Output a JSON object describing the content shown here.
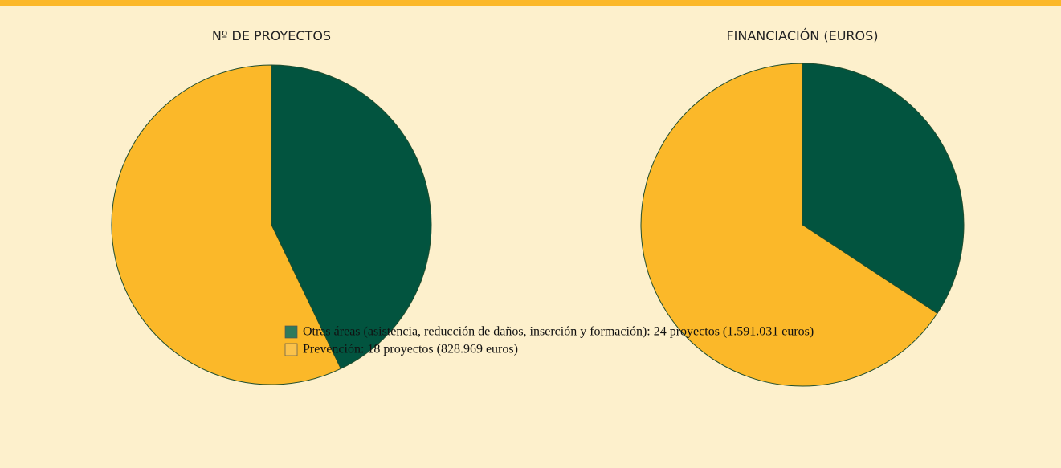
{
  "chart_data": [
    {
      "type": "pie",
      "title": "Nº DE PROYECTOS",
      "values": [
        18,
        24
      ],
      "colors": [
        "#02543f",
        "#fbb829"
      ]
    },
    {
      "type": "pie",
      "title": "FINANCIACIÓN (EUROS)",
      "values": [
        828969,
        1591031
      ],
      "colors": [
        "#02543f",
        "#fbb829"
      ]
    }
  ],
  "legend": [
    {
      "label": "Otras áreas (asistencia, reducción de daños, inserción y formación): 24 proyectos (1.591.031 euros)",
      "color": "#2f7a5c"
    },
    {
      "label": "Prevención: 18 proyectos (828.969 euros)",
      "color": "#fbc24a"
    }
  ]
}
